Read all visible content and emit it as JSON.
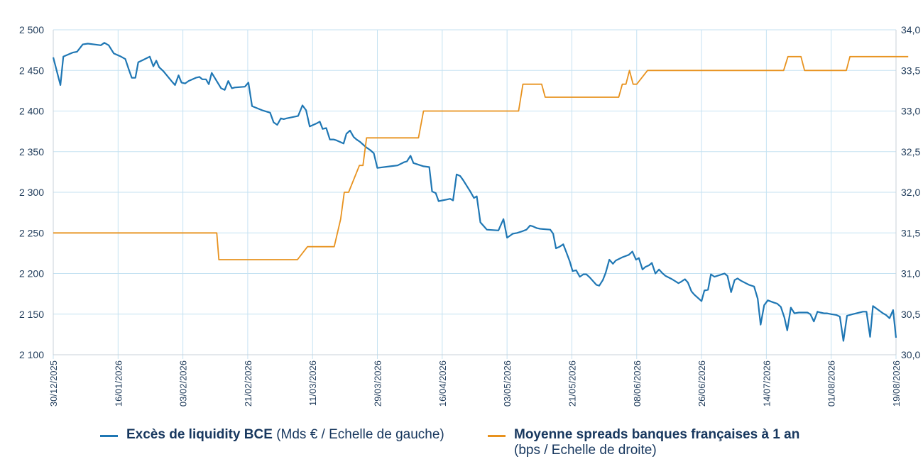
{
  "chart_data": {
    "type": "line",
    "x": [
      "30/12/2025",
      "16/01/2026",
      "03/02/2026",
      "21/02/2026",
      "11/03/2026",
      "29/03/2026",
      "16/04/2026",
      "03/05/2026",
      "21/05/2026",
      "08/06/2026",
      "26/06/2026",
      "14/07/2026",
      "01/08/2026",
      "19/08/2026"
    ],
    "y_left": {
      "ticks": [
        "2 100",
        "2 150",
        "2 200",
        "2 250",
        "2 300",
        "2 350",
        "2 400",
        "2 450",
        "2 500"
      ],
      "ylim": [
        2100,
        2500
      ]
    },
    "y_right": {
      "ticks": [
        "30,0",
        "30,5",
        "31,0",
        "31,5",
        "32,0",
        "32,5",
        "33,0",
        "33,5",
        "34,0"
      ],
      "ylim": [
        30,
        34
      ]
    },
    "grid": true,
    "legend_position": "bottom",
    "series": [
      {
        "name": "Excès de liquidity BCE",
        "legend_suffix": "(Mds € / Echelle de gauche)",
        "axis": "left",
        "color": "#1f77b4",
        "points": [
          [
            0,
            2466
          ],
          [
            10,
            2432
          ],
          [
            14,
            2467
          ],
          [
            27,
            2472
          ],
          [
            33,
            2473
          ],
          [
            41,
            2482
          ],
          [
            48,
            2483
          ],
          [
            66,
            2481
          ],
          [
            71,
            2484
          ],
          [
            77,
            2481
          ],
          [
            84,
            2471
          ],
          [
            94,
            2467
          ],
          [
            100,
            2464
          ],
          [
            105,
            2451
          ],
          [
            109,
            2441
          ],
          [
            114,
            2441
          ],
          [
            118,
            2460
          ],
          [
            125,
            2463
          ],
          [
            134,
            2467
          ],
          [
            139,
            2455
          ],
          [
            143,
            2462
          ],
          [
            147,
            2454
          ],
          [
            153,
            2449
          ],
          [
            166,
            2435
          ],
          [
            169,
            2432
          ],
          [
            174,
            2444
          ],
          [
            178,
            2435
          ],
          [
            183,
            2434
          ],
          [
            188,
            2437
          ],
          [
            198,
            2441
          ],
          [
            203,
            2442
          ],
          [
            207,
            2439
          ],
          [
            212,
            2439
          ],
          [
            216,
            2433
          ],
          [
            220,
            2447
          ],
          [
            233,
            2428
          ],
          [
            238,
            2426
          ],
          [
            243,
            2437
          ],
          [
            248,
            2428
          ],
          [
            252,
            2429
          ],
          [
            266,
            2430
          ],
          [
            271,
            2435
          ],
          [
            276,
            2406
          ],
          [
            290,
            2401
          ],
          [
            301,
            2398
          ],
          [
            306,
            2386
          ],
          [
            311,
            2383
          ],
          [
            316,
            2391
          ],
          [
            320,
            2390
          ],
          [
            324,
            2391
          ],
          [
            340,
            2394
          ],
          [
            346,
            2407
          ],
          [
            351,
            2401
          ],
          [
            356,
            2381
          ],
          [
            366,
            2385
          ],
          [
            370,
            2387
          ],
          [
            374,
            2378
          ],
          [
            379,
            2379
          ],
          [
            384,
            2365
          ],
          [
            389,
            2365
          ],
          [
            393,
            2364
          ],
          [
            398,
            2362
          ],
          [
            403,
            2360
          ],
          [
            407,
            2372
          ],
          [
            412,
            2376
          ],
          [
            417,
            2368
          ],
          [
            421,
            2365
          ],
          [
            426,
            2362
          ],
          [
            431,
            2358
          ],
          [
            435,
            2355
          ],
          [
            440,
            2352
          ],
          [
            445,
            2348
          ],
          [
            450,
            2330
          ],
          [
            468,
            2332
          ],
          [
            478,
            2333
          ],
          [
            487,
            2337
          ],
          [
            491,
            2338
          ],
          [
            496,
            2345
          ],
          [
            500,
            2336
          ],
          [
            514,
            2332
          ],
          [
            522,
            2331
          ],
          [
            526,
            2301
          ],
          [
            531,
            2299
          ],
          [
            535,
            2289
          ],
          [
            540,
            2290
          ],
          [
            546,
            2291
          ],
          [
            551,
            2292
          ],
          [
            555,
            2290
          ],
          [
            560,
            2322
          ],
          [
            565,
            2320
          ],
          [
            569,
            2315
          ],
          [
            574,
            2308
          ],
          [
            579,
            2301
          ],
          [
            584,
            2293
          ],
          [
            588,
            2295
          ],
          [
            593,
            2263
          ],
          [
            598,
            2258
          ],
          [
            602,
            2254
          ],
          [
            618,
            2253
          ],
          [
            625,
            2267
          ],
          [
            630,
            2244
          ],
          [
            638,
            2249
          ],
          [
            644,
            2250
          ],
          [
            651,
            2252
          ],
          [
            657,
            2254
          ],
          [
            662,
            2259
          ],
          [
            666,
            2258
          ],
          [
            671,
            2256
          ],
          [
            676,
            2255
          ],
          [
            690,
            2254
          ],
          [
            694,
            2249
          ],
          [
            698,
            2231
          ],
          [
            703,
            2233
          ],
          [
            708,
            2236
          ],
          [
            712,
            2227
          ],
          [
            717,
            2215
          ],
          [
            721,
            2203
          ],
          [
            726,
            2204
          ],
          [
            731,
            2196
          ],
          [
            736,
            2199
          ],
          [
            740,
            2199
          ],
          [
            745,
            2195
          ],
          [
            749,
            2191
          ],
          [
            754,
            2186
          ],
          [
            758,
            2185
          ],
          [
            763,
            2192
          ],
          [
            767,
            2201
          ],
          [
            772,
            2217
          ],
          [
            777,
            2212
          ],
          [
            781,
            2216
          ],
          [
            790,
            2220
          ],
          [
            799,
            2223
          ],
          [
            804,
            2227
          ],
          [
            809,
            2217
          ],
          [
            813,
            2219
          ],
          [
            818,
            2205
          ],
          [
            822,
            2208
          ],
          [
            827,
            2210
          ],
          [
            831,
            2213
          ],
          [
            836,
            2200
          ],
          [
            841,
            2205
          ],
          [
            845,
            2201
          ],
          [
            850,
            2197
          ],
          [
            859,
            2193
          ],
          [
            868,
            2188
          ],
          [
            872,
            2190
          ],
          [
            877,
            2193
          ],
          [
            881,
            2189
          ],
          [
            886,
            2178
          ],
          [
            890,
            2174
          ],
          [
            900,
            2166
          ],
          [
            904,
            2179
          ],
          [
            909,
            2180
          ],
          [
            913,
            2199
          ],
          [
            918,
            2196
          ],
          [
            932,
            2200
          ],
          [
            936,
            2197
          ],
          [
            941,
            2177
          ],
          [
            946,
            2192
          ],
          [
            950,
            2194
          ],
          [
            955,
            2191
          ],
          [
            966,
            2186
          ],
          [
            973,
            2184
          ],
          [
            978,
            2169
          ],
          [
            982,
            2137
          ],
          [
            987,
            2161
          ],
          [
            992,
            2167
          ],
          [
            1001,
            2164
          ],
          [
            1005,
            2163
          ],
          [
            1010,
            2159
          ],
          [
            1015,
            2146
          ],
          [
            1019,
            2130
          ],
          [
            1024,
            2158
          ],
          [
            1029,
            2151
          ],
          [
            1035,
            2152
          ],
          [
            1047,
            2152
          ],
          [
            1051,
            2150
          ],
          [
            1056,
            2141
          ],
          [
            1061,
            2153
          ],
          [
            1065,
            2152
          ],
          [
            1070,
            2151
          ],
          [
            1074,
            2151
          ],
          [
            1080,
            2150
          ],
          [
            1087,
            2149
          ],
          [
            1092,
            2147
          ],
          [
            1097,
            2117
          ],
          [
            1102,
            2148
          ],
          [
            1110,
            2150
          ],
          [
            1115,
            2151
          ],
          [
            1124,
            2153
          ],
          [
            1129,
            2153
          ],
          [
            1134,
            2122
          ],
          [
            1138,
            2160
          ],
          [
            1152,
            2151
          ],
          [
            1156,
            2149
          ],
          [
            1161,
            2145
          ],
          [
            1166,
            2155
          ],
          [
            1170,
            2121
          ]
        ]
      },
      {
        "name": "Moyenne spreads banques françaises à 1 an",
        "legend_suffix": "(bps / Echelle de droite)",
        "axis": "right",
        "color": "#e8921e",
        "points": [
          [
            0,
            31.5
          ],
          [
            227,
            31.5
          ],
          [
            230,
            31.17
          ],
          [
            339,
            31.17
          ],
          [
            353,
            31.33
          ],
          [
            390,
            31.33
          ],
          [
            399,
            31.67
          ],
          [
            404,
            32.0
          ],
          [
            410,
            32.0
          ],
          [
            425,
            32.33
          ],
          [
            430,
            32.33
          ],
          [
            435,
            32.67
          ],
          [
            507,
            32.67
          ],
          [
            514,
            33.0
          ],
          [
            646,
            33.0
          ],
          [
            652,
            33.33
          ],
          [
            678,
            33.33
          ],
          [
            683,
            33.17
          ],
          [
            785,
            33.17
          ],
          [
            790,
            33.33
          ],
          [
            795,
            33.33
          ],
          [
            800,
            33.5
          ],
          [
            805,
            33.33
          ],
          [
            810,
            33.33
          ],
          [
            825,
            33.5
          ],
          [
            1014,
            33.5
          ],
          [
            1020,
            33.67
          ],
          [
            1038,
            33.67
          ],
          [
            1043,
            33.5
          ],
          [
            1101,
            33.5
          ],
          [
            1106,
            33.67
          ],
          [
            1187,
            33.67
          ]
        ]
      }
    ]
  }
}
